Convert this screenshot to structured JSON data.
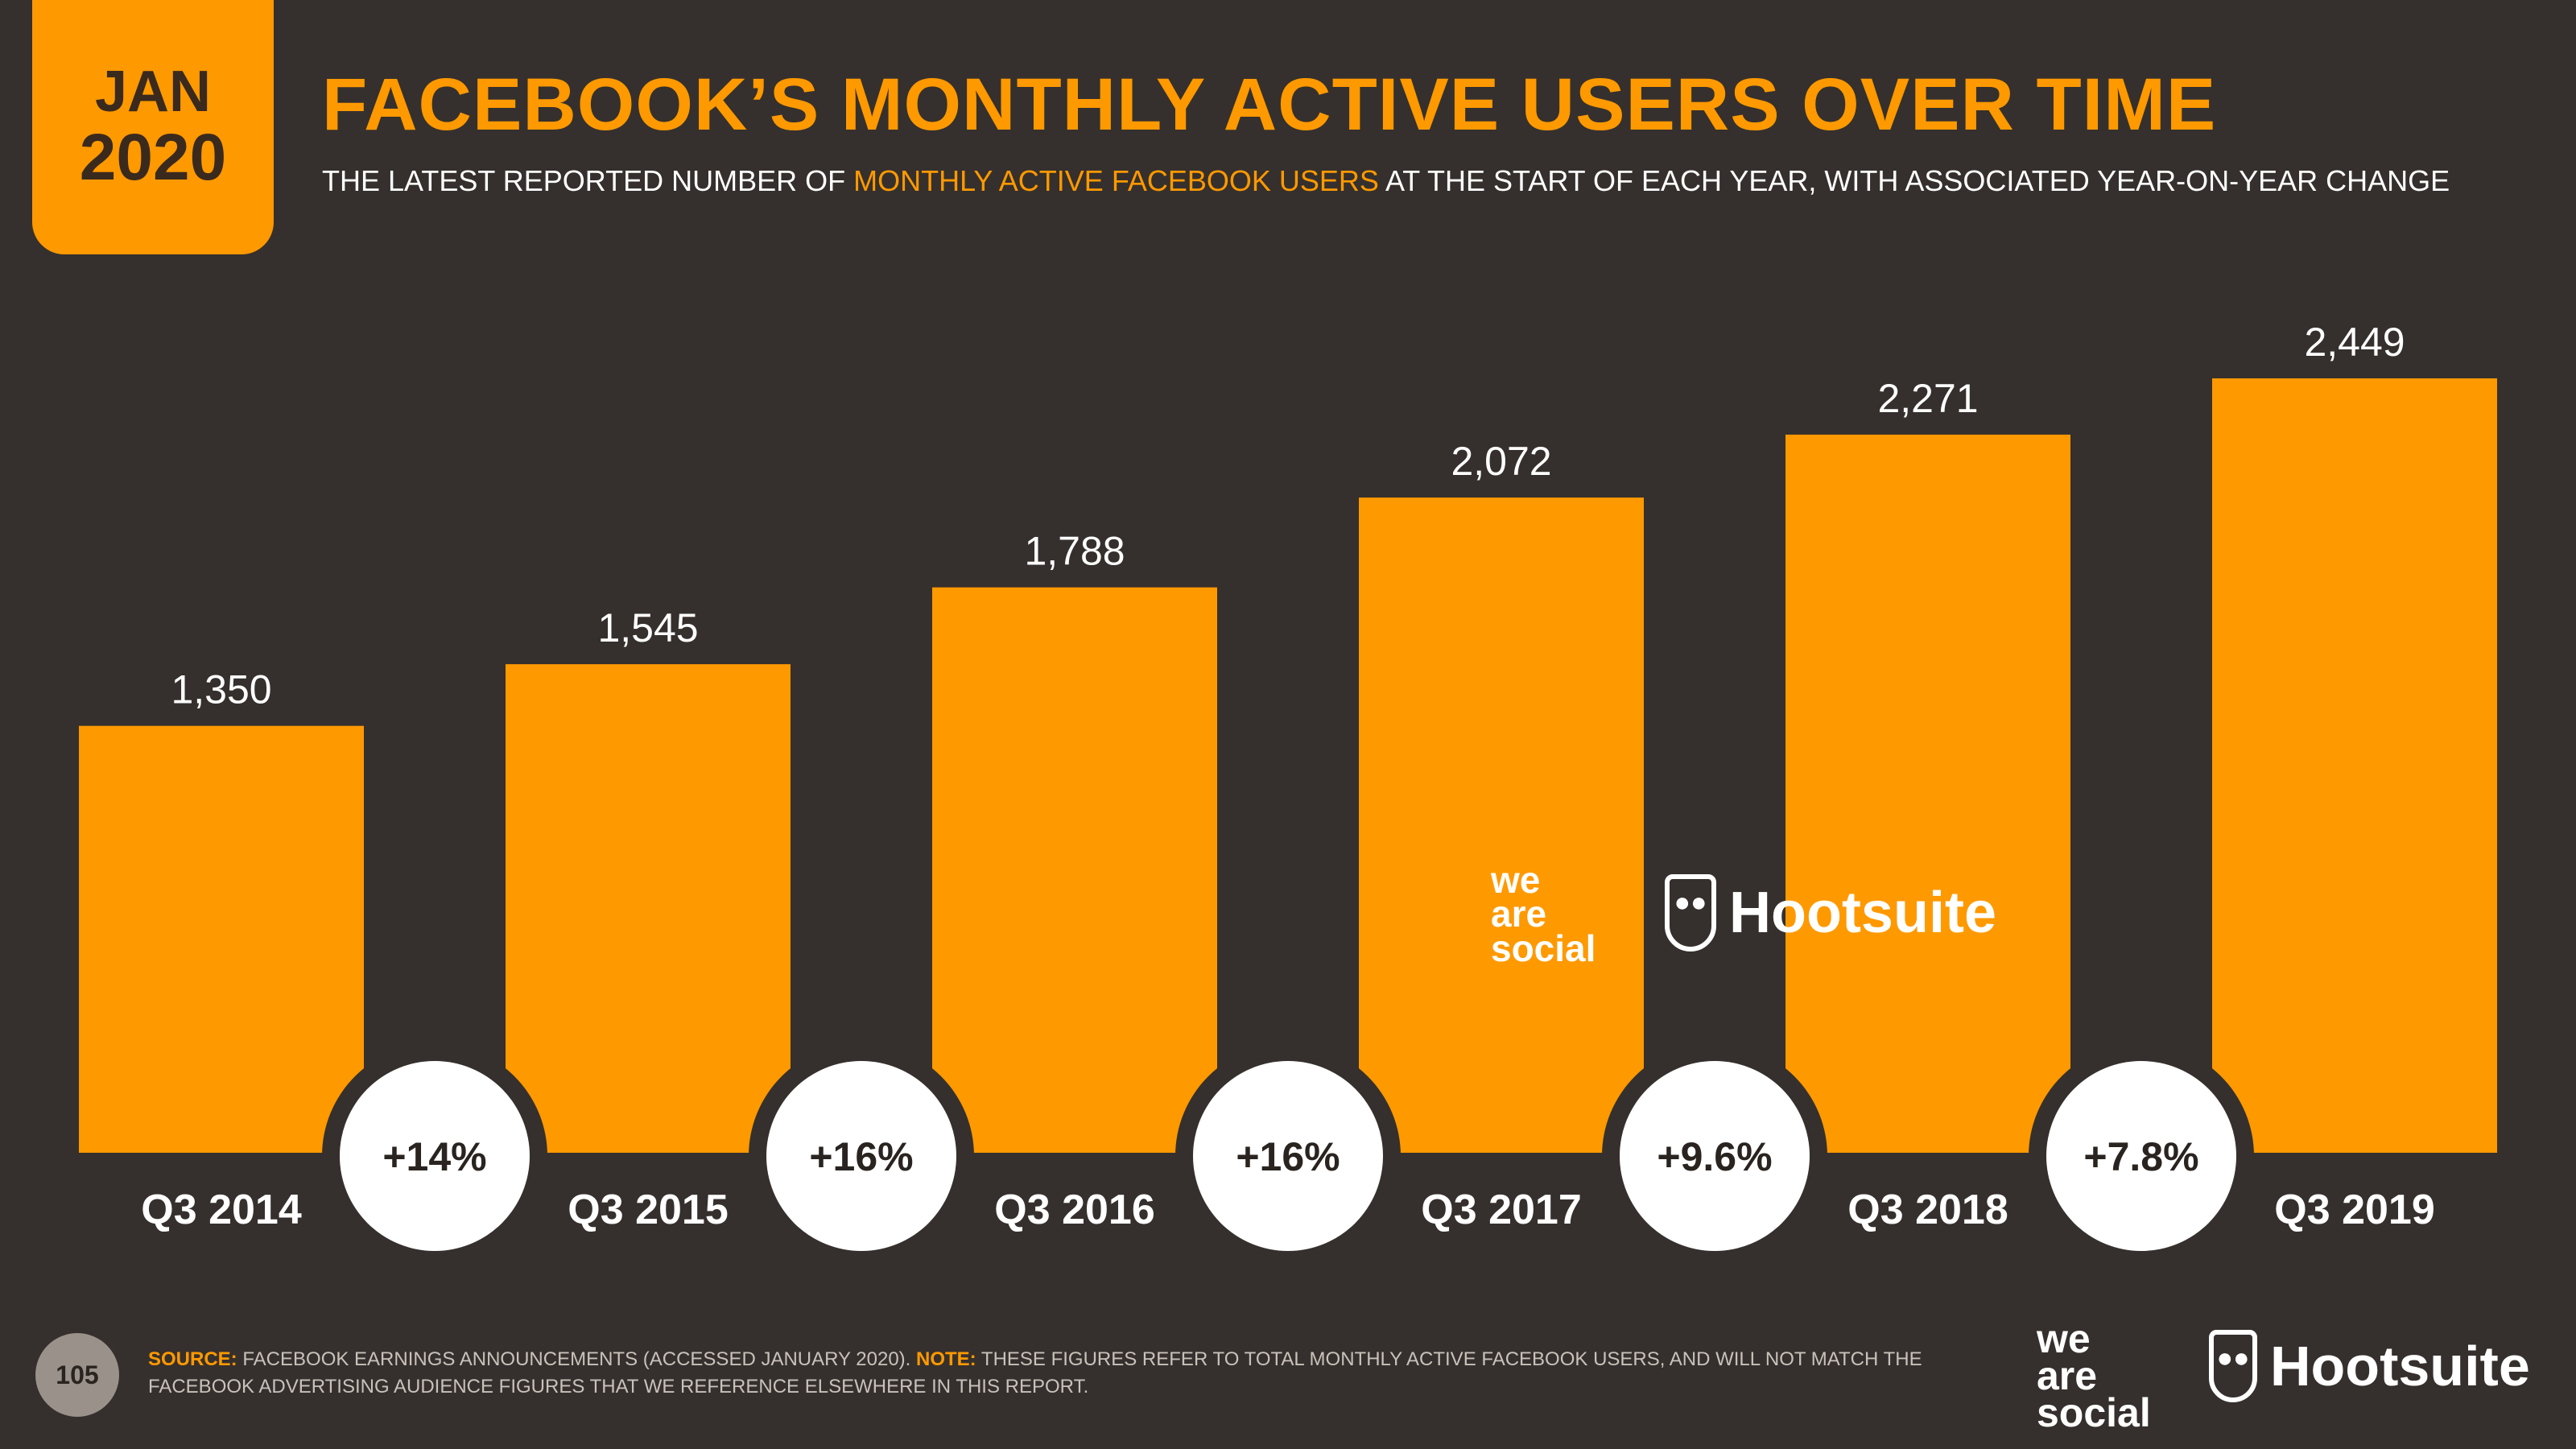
{
  "badge": {
    "month": "JAN",
    "year": "2020"
  },
  "header": {
    "title": "FACEBOOK’S MONTHLY ACTIVE USERS OVER TIME",
    "subtitle_pre": "THE LATEST REPORTED NUMBER OF ",
    "subtitle_highlight": "MONTHLY ACTIVE FACEBOOK USERS",
    "subtitle_post": " AT THE START OF EACH YEAR, WITH ASSOCIATED YEAR-ON-YEAR CHANGE"
  },
  "chart_data": {
    "type": "bar",
    "title": "FACEBOOK’S MONTHLY ACTIVE USERS OVER TIME",
    "categories": [
      "Q3 2014",
      "Q3 2015",
      "Q3 2016",
      "Q3 2017",
      "Q3 2018",
      "Q3 2019"
    ],
    "values": [
      1350,
      1545,
      1788,
      2072,
      2271,
      2449
    ],
    "value_labels": [
      "1,350",
      "1,545",
      "1,788",
      "2,072",
      "2,271",
      "2,449"
    ],
    "changes": [
      "+14%",
      "+16%",
      "+16%",
      "+9.6%",
      "+7.8%"
    ],
    "xlabel": "",
    "ylabel": "",
    "ylim": [
      0,
      2449
    ],
    "grid": false,
    "bar_color": "#ff9900"
  },
  "watermark": {
    "we_are_social": [
      "we",
      "are",
      "social"
    ],
    "hootsuite": "Hootsuite",
    "owl_icon": "owl-icon"
  },
  "footer": {
    "page_number": "105",
    "source_label": "SOURCE:",
    "source_text": " FACEBOOK EARNINGS ANNOUNCEMENTS (ACCESSED JANUARY 2020). ",
    "note_label": "NOTE:",
    "note_text": " THESE FIGURES REFER TO TOTAL MONTHLY ACTIVE FACEBOOK USERS, AND WILL NOT MATCH THE FACEBOOK ADVERTISING AUDIENCE FIGURES THAT WE REFERENCE ELSEWHERE IN THIS REPORT."
  },
  "colors": {
    "background": "#35302d",
    "accent": "#ff9900",
    "white": "#ffffff"
  }
}
